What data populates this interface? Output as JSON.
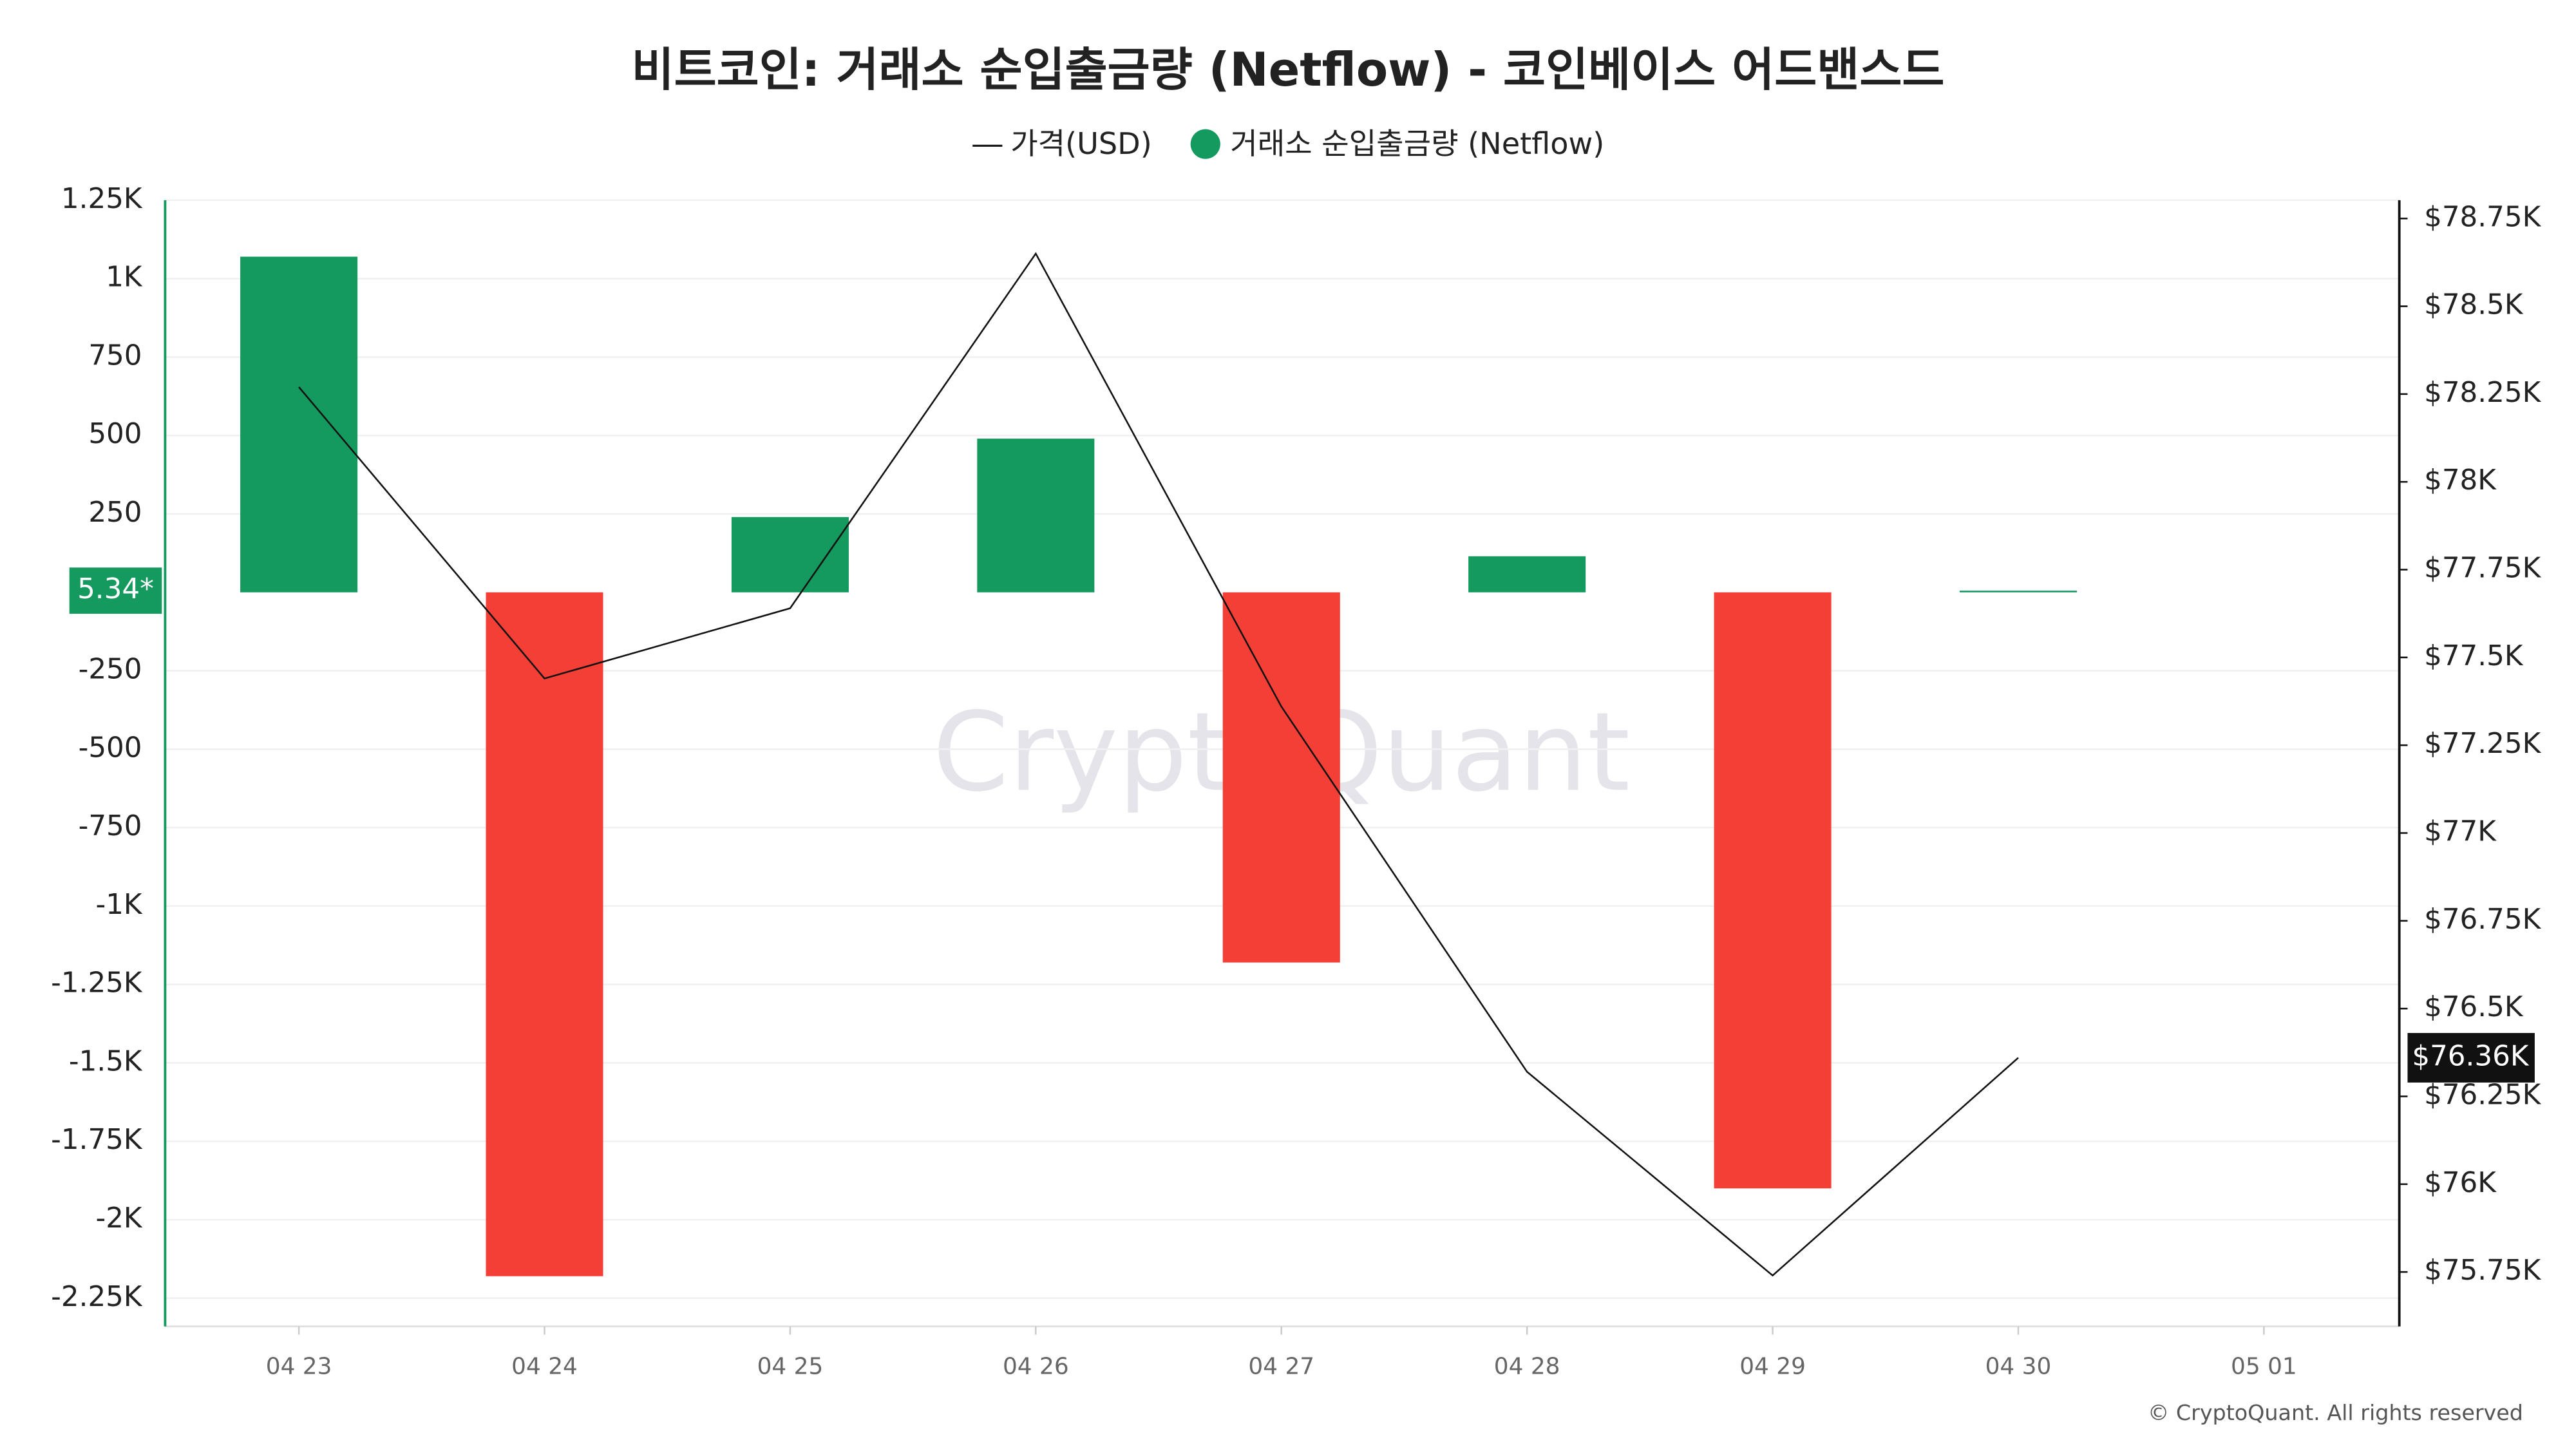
{
  "chart_data": {
    "type": "bar",
    "title": "비트코인: 거래소 순입출금량 (Netflow) - 코인베이스 어드밴스드",
    "watermark": "CryptoQuant",
    "footer": "© CryptoQuant. All rights reserved",
    "categories": [
      "04 23",
      "04 24",
      "04 25",
      "04 26",
      "04 27",
      "04 28",
      "04 29",
      "04 30",
      "05 01"
    ],
    "series": [
      {
        "name": "가격(USD)",
        "type": "line",
        "axis": "y2",
        "color": "#111111",
        "values": [
          78270,
          77440,
          77640,
          78650,
          77360,
          76320,
          75740,
          76360,
          null
        ],
        "value_labels": [
          null,
          null,
          null,
          null,
          null,
          null,
          null,
          "$76.36K",
          null
        ]
      },
      {
        "name": "거래소 순입출금량 (Netflow)",
        "type": "bar",
        "color": "#149a5f",
        "negative_color": "#f43f37",
        "values": [
          1070,
          -2180,
          240,
          490,
          -1180,
          115,
          -1900,
          5.34,
          null
        ],
        "value_labels": [
          null,
          null,
          null,
          null,
          null,
          null,
          null,
          "5.34*",
          null
        ]
      }
    ],
    "ylim": [
      -2340,
      1250
    ],
    "yticks": [
      {
        "value": 1250,
        "label": "1.25K"
      },
      {
        "value": 1000,
        "label": "1K"
      },
      750,
      500,
      250,
      -250,
      -500,
      -750,
      {
        "value": -1000,
        "label": "-1K"
      },
      {
        "value": -1250,
        "label": "-1.25K"
      },
      {
        "value": -1500,
        "label": "-1.5K"
      },
      {
        "value": -1750,
        "label": "-1.75K"
      },
      {
        "value": -2000,
        "label": "-2K"
      },
      {
        "value": -2250,
        "label": "-2.25K"
      }
    ],
    "y2lim": [
      75595,
      78802
    ],
    "y2ticks": [
      {
        "value": 78750,
        "label": "$78.75K"
      },
      {
        "value": 78500,
        "label": "$78.5K"
      },
      {
        "value": 78250,
        "label": "$78.25K"
      },
      {
        "value": 78000,
        "label": "$78K"
      },
      {
        "value": 77750,
        "label": "$77.75K"
      },
      {
        "value": 77500,
        "label": "$77.5K"
      },
      {
        "value": 77250,
        "label": "$77.25K"
      },
      {
        "value": 77000,
        "label": "$77K"
      },
      {
        "value": 76750,
        "label": "$76.75K"
      },
      {
        "value": 76500,
        "label": "$76.5K"
      },
      {
        "value": 76250,
        "label": "$76.25K"
      },
      {
        "value": 76000,
        "label": "$76K"
      },
      {
        "value": 75750,
        "label": "$75.75K"
      }
    ],
    "grid": true
  }
}
